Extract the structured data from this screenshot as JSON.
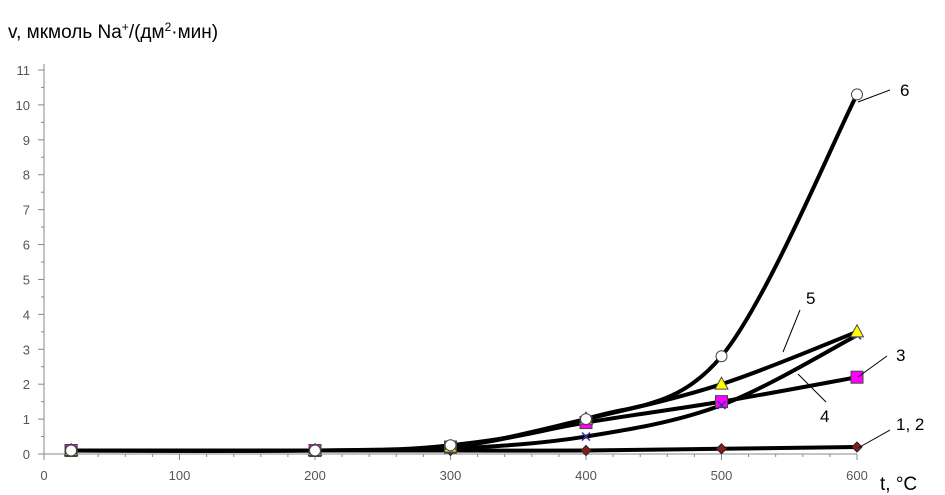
{
  "chart_data": {
    "type": "line",
    "ylabel": "v, мкмоль Na",
    "ylabel_sup1": "+",
    "ylabel_mid": "/(дм",
    "ylabel_sup2": "2",
    "ylabel_end": "·мин)",
    "xlabel": "t, °C",
    "x_ticks": [
      0,
      100,
      200,
      300,
      400,
      500,
      600
    ],
    "y_ticks": [
      0,
      1,
      2,
      3,
      4,
      5,
      6,
      7,
      8,
      9,
      10,
      11
    ],
    "xlim": [
      0,
      600
    ],
    "ylim": [
      0,
      11
    ],
    "grid": false,
    "series": [
      {
        "name": "1, 2",
        "color": "#8b1a1a",
        "marker": "diamond",
        "x": [
          20,
          200,
          300,
          400,
          500,
          600
        ],
        "y": [
          0.1,
          0.1,
          0.1,
          0.1,
          0.15,
          0.2
        ]
      },
      {
        "name": "3",
        "color": "#ff00ff",
        "marker": "square",
        "x": [
          20,
          200,
          300,
          400,
          500,
          600
        ],
        "y": [
          0.1,
          0.1,
          0.2,
          0.9,
          1.5,
          2.2
        ]
      },
      {
        "name": "4",
        "color": "#333399",
        "marker": "x",
        "x": [
          20,
          200,
          300,
          400,
          500,
          600
        ],
        "y": [
          0.1,
          0.1,
          0.15,
          0.5,
          1.4,
          3.4
        ]
      },
      {
        "name": "5",
        "color": "#ffff00",
        "marker": "triangle",
        "x": [
          20,
          200,
          300,
          400,
          500,
          600
        ],
        "y": [
          0.1,
          0.1,
          0.2,
          1.0,
          2.0,
          3.5
        ]
      },
      {
        "name": "6",
        "color": "#ffffff",
        "marker": "circle",
        "x": [
          20,
          200,
          300,
          400,
          500,
          600
        ],
        "y": [
          0.1,
          0.1,
          0.25,
          1.0,
          2.8,
          10.3
        ]
      }
    ]
  }
}
